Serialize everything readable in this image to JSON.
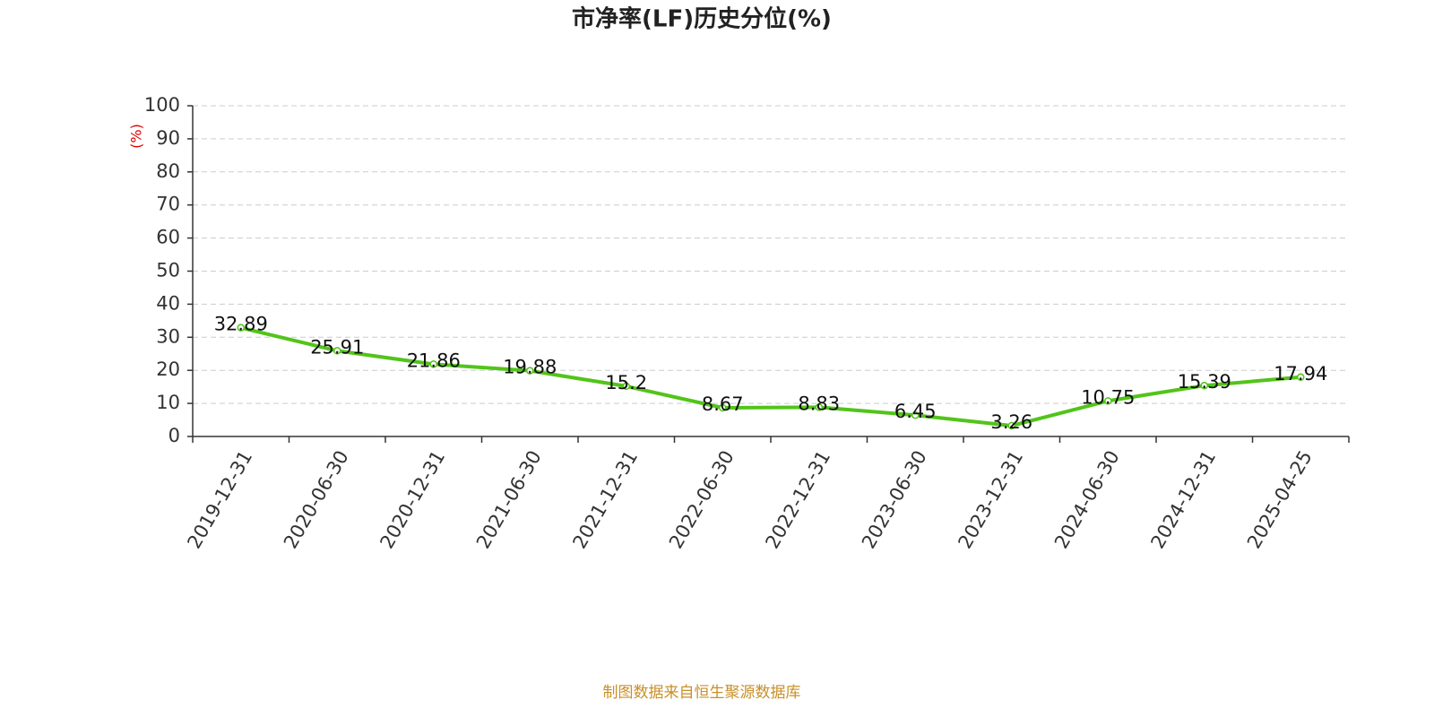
{
  "chart_data": {
    "type": "line",
    "title": "市净率(LF)历史分位(%)",
    "y_label": "(%)",
    "categories": [
      "2019-12-31",
      "2020-06-30",
      "2020-12-31",
      "2021-06-30",
      "2021-12-31",
      "2022-06-30",
      "2022-12-31",
      "2023-06-30",
      "2023-12-31",
      "2024-06-30",
      "2024-12-31",
      "2025-04-25"
    ],
    "values": [
      32.89,
      25.91,
      21.86,
      19.88,
      15.2,
      8.67,
      8.83,
      6.45,
      3.26,
      10.75,
      15.39,
      17.94
    ],
    "color": "#52c41a",
    "ylim": [
      0,
      100
    ],
    "yticks": [
      0,
      10,
      20,
      30,
      40,
      50,
      60,
      70,
      80,
      90,
      100
    ],
    "grid": true,
    "source": "制图数据来自恒生聚源数据库"
  }
}
